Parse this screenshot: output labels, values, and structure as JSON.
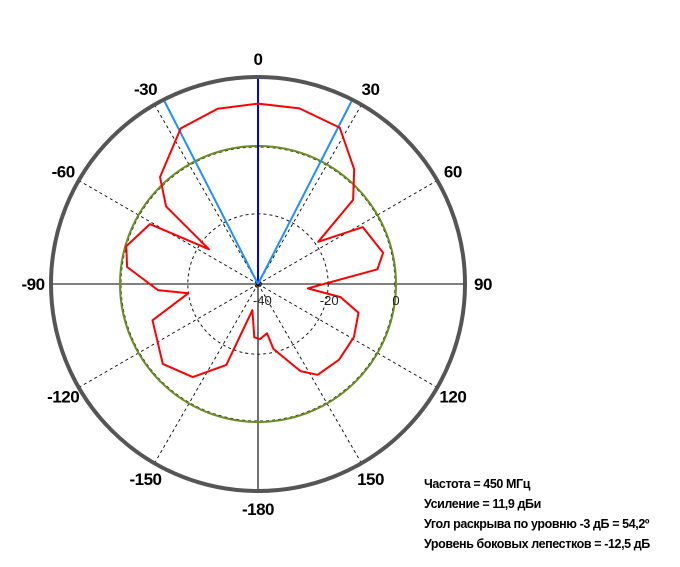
{
  "chart_data": {
    "type": "polar-line",
    "angle_direction": "clockwise",
    "angle_zero": "top",
    "angular_ticks": [
      0,
      30,
      60,
      90,
      120,
      150,
      -180,
      -150,
      -120,
      -90,
      -60,
      -30
    ],
    "angular_tick_labels": [
      "0",
      "30",
      "60",
      "90",
      "120",
      "150",
      "-180",
      "-150",
      "-120",
      "-90",
      "-60",
      "-30"
    ],
    "radial_ticks": [
      -40,
      -20,
      0
    ],
    "radial_tick_labels": [
      "-40",
      "-20",
      "0"
    ],
    "rlim": [
      -41,
      20
    ],
    "grid": true,
    "series": [
      {
        "color": "#ff0000",
        "points": [
          [
            -176,
            -25
          ],
          [
            -168,
            -33
          ],
          [
            -158.6,
            -15
          ],
          [
            -145,
            -7
          ],
          [
            -130,
            -3.8
          ],
          [
            -109,
            -7.6
          ],
          [
            -97.5,
            -20
          ],
          [
            -93.5,
            -11
          ],
          [
            -82.6,
            -1.5
          ],
          [
            -74,
            0
          ],
          [
            -61,
            -4
          ],
          [
            -54.7,
            -23
          ],
          [
            -49.8,
            -5
          ],
          [
            -42.5,
            2.4
          ],
          [
            -26.4,
            11
          ],
          [
            -13,
            12.8
          ],
          [
            0,
            13
          ],
          [
            13.3,
            13
          ],
          [
            27.6,
            11.8
          ],
          [
            40,
            3.8
          ],
          [
            48.5,
            -3
          ],
          [
            55,
            -19
          ],
          [
            61.5,
            -5.3
          ],
          [
            76,
            -2.4
          ],
          [
            83,
            -5
          ],
          [
            95,
            -26
          ],
          [
            99,
            -16
          ],
          [
            106,
            -9.7
          ],
          [
            119,
            -8.2
          ],
          [
            133,
            -7.8
          ],
          [
            146.7,
            -8.5
          ],
          [
            154,
            -12
          ],
          [
            166.6,
            -21
          ],
          [
            169.6,
            -26
          ],
          [
            178,
            -24.5
          ]
        ]
      }
    ],
    "reference_circle": {
      "value": 0,
      "color": "#6b8e23"
    },
    "beam_lines": [
      {
        "angle": 0,
        "color": "#0000ff"
      },
      {
        "angle": -27.1,
        "color": "#1e90ff"
      },
      {
        "angle": 27.1,
        "color": "#1e90ff"
      }
    ],
    "annotations": [
      "Частота = 450 МГц",
      "Усиление = 11,9 дБи",
      "Угол раскрыва по уровню -3 дБ = 54,2º",
      "Уровень боковых лепестков = -12,5 дБ"
    ]
  }
}
